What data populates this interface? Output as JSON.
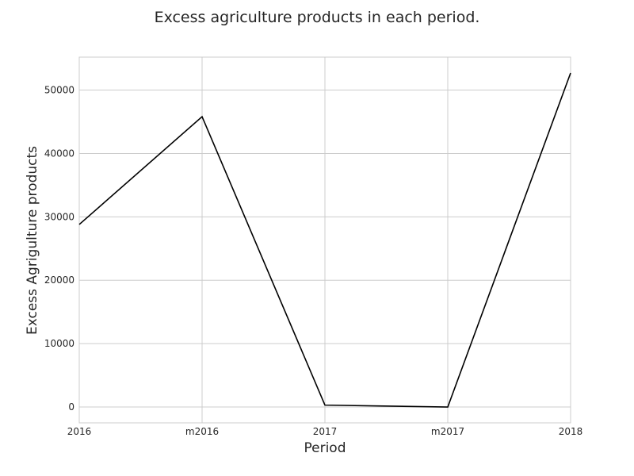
{
  "chart_data": {
    "type": "line",
    "title": "Excess agriculture products in each period.",
    "xlabel": "Period",
    "ylabel": "Excess Agrigulture products",
    "categories": [
      "2016",
      "m2016",
      "2017",
      "m2017",
      "2018"
    ],
    "series": [
      {
        "values": [
          28800,
          45800,
          300,
          0,
          52700
        ],
        "color": "#000000"
      }
    ],
    "ylim": [
      -2500,
      55200
    ],
    "yticks": [
      0,
      10000,
      20000,
      30000,
      40000,
      50000
    ],
    "grid": true,
    "style": "seaborn-whitegrid"
  }
}
